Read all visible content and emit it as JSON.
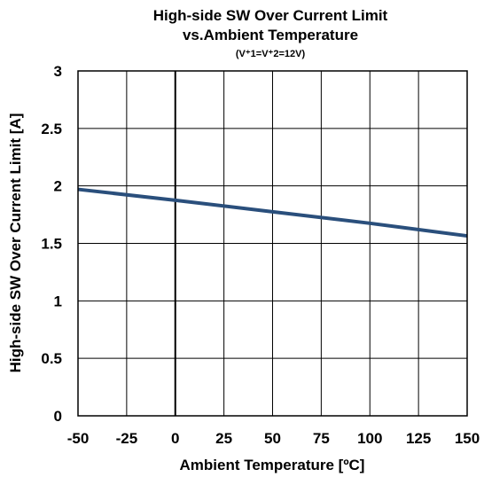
{
  "chart_data": {
    "type": "line",
    "title": "High-side SW Over Current Limit",
    "title_line2": "vs.Ambient Temperature",
    "subtitle": "(V⁺1=V⁺2=12V)",
    "xlabel": "Ambient Temperature [ºC]",
    "ylabel": "High-side SW Over Current Limit [A]",
    "xlim": [
      -50,
      150
    ],
    "ylim": [
      0,
      3
    ],
    "xticks": [
      -50,
      -25,
      0,
      25,
      50,
      75,
      100,
      125,
      150
    ],
    "yticks": [
      0,
      0.5,
      1,
      1.5,
      2,
      2.5,
      3
    ],
    "ytick_labels": [
      "0",
      "0.5",
      "1",
      "1.5",
      "2",
      "2.5",
      "3"
    ],
    "grid": true,
    "series": [
      {
        "color": "#2a4f7c",
        "x": [
          -50,
          0,
          50,
          100,
          150
        ],
        "y": [
          1.97,
          1.875,
          1.775,
          1.675,
          1.565
        ]
      }
    ]
  }
}
